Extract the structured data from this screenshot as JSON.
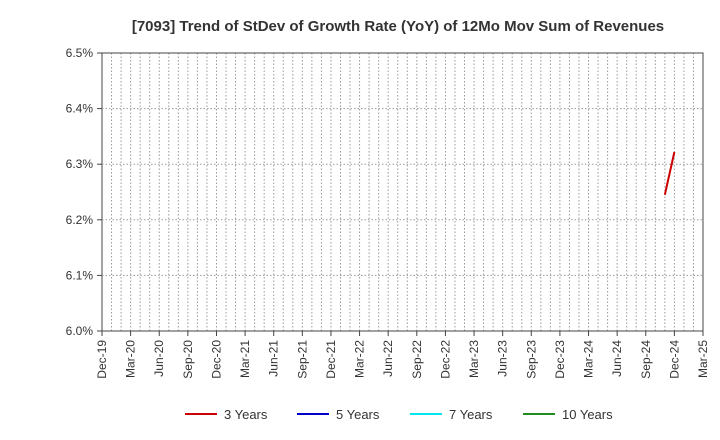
{
  "chart_data": {
    "type": "line",
    "title": "[7093]  Trend of StDev of Growth Rate (YoY) of 12Mo Mov Sum of Revenues",
    "xlabel": "",
    "ylabel": "",
    "ylim": [
      6.0,
      6.5
    ],
    "y_ticks": [
      "6.0%",
      "6.1%",
      "6.2%",
      "6.3%",
      "6.4%",
      "6.5%"
    ],
    "x_categories": [
      "Dec-19",
      "Jan-20",
      "Feb-20",
      "Mar-20",
      "Apr-20",
      "May-20",
      "Jun-20",
      "Jul-20",
      "Aug-20",
      "Sep-20",
      "Oct-20",
      "Nov-20",
      "Dec-20",
      "Jan-21",
      "Feb-21",
      "Mar-21",
      "Apr-21",
      "May-21",
      "Jun-21",
      "Jul-21",
      "Aug-21",
      "Sep-21",
      "Oct-21",
      "Nov-21",
      "Dec-21",
      "Jan-22",
      "Feb-22",
      "Mar-22",
      "Apr-22",
      "May-22",
      "Jun-22",
      "Jul-22",
      "Aug-22",
      "Sep-22",
      "Oct-22",
      "Nov-22",
      "Dec-22",
      "Jan-23",
      "Feb-23",
      "Mar-23",
      "Apr-23",
      "May-23",
      "Jun-23",
      "Jul-23",
      "Aug-23",
      "Sep-23",
      "Oct-23",
      "Nov-23",
      "Dec-23",
      "Jan-24",
      "Feb-24",
      "Mar-24",
      "Apr-24",
      "May-24",
      "Jun-24",
      "Jul-24",
      "Aug-24",
      "Sep-24",
      "Oct-24",
      "Nov-24",
      "Dec-24",
      "Jan-25",
      "Feb-25",
      "Mar-25"
    ],
    "x_tick_labels": [
      "Dec-19",
      "Mar-20",
      "Jun-20",
      "Sep-20",
      "Dec-20",
      "Mar-21",
      "Jun-21",
      "Sep-21",
      "Dec-21",
      "Mar-22",
      "Jun-22",
      "Sep-22",
      "Dec-22",
      "Mar-23",
      "Jun-23",
      "Sep-23",
      "Dec-23",
      "Mar-24",
      "Jun-24",
      "Sep-24",
      "Dec-24",
      "Mar-25"
    ],
    "grid": true,
    "legend_position": "bottom",
    "series": [
      {
        "name": "3 Years",
        "color": "#cc0000",
        "points": [
          {
            "x": "Nov-24",
            "y": 6.245
          },
          {
            "x": "Dec-24",
            "y": 6.322
          }
        ]
      },
      {
        "name": "5 Years",
        "color": "#0000cc",
        "points": []
      },
      {
        "name": "7 Years",
        "color": "#00e5ee",
        "points": []
      },
      {
        "name": "10 Years",
        "color": "#228b22",
        "points": []
      }
    ]
  }
}
